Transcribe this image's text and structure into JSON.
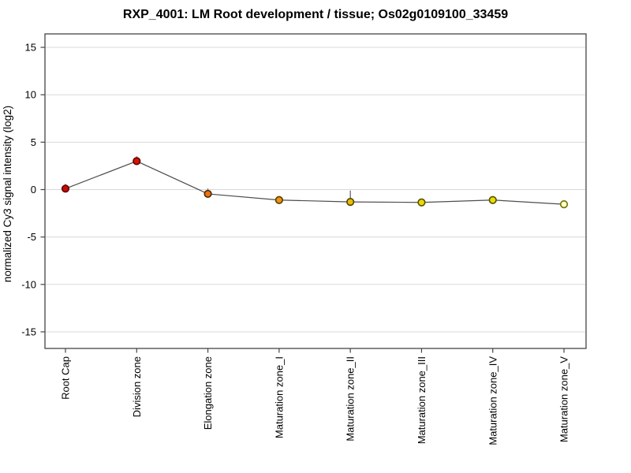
{
  "figure": {
    "background_color": "#ffffff",
    "text_color": "#000000"
  },
  "chart_data": {
    "type": "line",
    "title": "RXP_4001: LM Root development / tissue; Os02g0109100_33459",
    "xlabel": "",
    "ylabel": "normalized Cy3 signal intensity (log2)",
    "categories": [
      "Root Cap",
      "Division zone",
      "Elongation zone",
      "Maturation zone_I",
      "Maturation zone_II",
      "Maturation zone_III",
      "Maturation zone_IV",
      "Maturation zone_V"
    ],
    "values": [
      0.1,
      3.0,
      -0.45,
      -1.1,
      -1.3,
      -1.35,
      -1.1,
      -1.55
    ],
    "error_bars": {
      "top": [
        0.6,
        3.5,
        0.1,
        -0.85,
        -0.1,
        -1.1,
        -0.7,
        -1.45
      ],
      "bottom": [
        -0.05,
        2.85,
        -0.6,
        -1.25,
        -1.5,
        -1.5,
        -1.3,
        -1.65
      ]
    },
    "point_fill_colors": [
      "#cc0a00",
      "#d61400",
      "#ea7414",
      "#f0920e",
      "#e8bc0a",
      "#e8dc00",
      "#e8dc00",
      "#ffffc8"
    ],
    "point_stroke_colors": [
      "#5a0000",
      "#600000",
      "#4e2a00",
      "#544000",
      "#4e4400",
      "#565000",
      "#565000",
      "#707000"
    ],
    "line_color": "#4d4d4d",
    "error_bar_color": "#4d4d4d",
    "grid_color": "#d9d9d9",
    "frame_color": "#454545",
    "tick_color": "#454545",
    "yticks": [
      -15,
      -10,
      -5,
      0,
      5,
      10,
      15
    ],
    "ylim": [
      -16.6,
      16.4
    ],
    "grid": true,
    "legend": "none",
    "x_label_rotation_deg": 90,
    "marker_shape": "circle"
  }
}
